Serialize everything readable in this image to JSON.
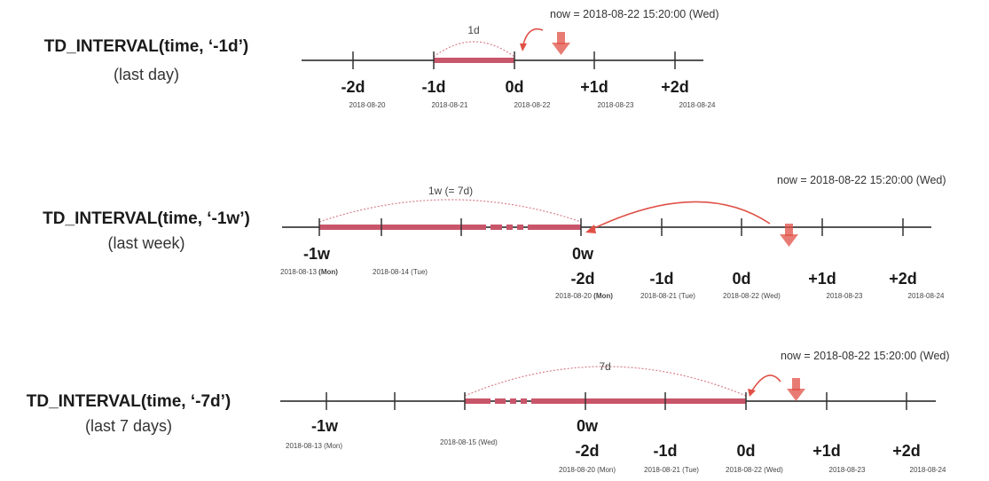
{
  "accent_color": "#c8566a",
  "arrow_color": "#e05045",
  "panels": [
    {
      "function": "TD_INTERVAL(time, ‘-1d’)",
      "caption": "(last day)",
      "now_label": "now = 2018-08-22 15:20:00 (Wed)",
      "span_label": "1d",
      "ticks": [
        {
          "label": "-2d",
          "date": "2018-08-20"
        },
        {
          "label": "-1d",
          "date": "2018-08-21"
        },
        {
          "label": "0d",
          "date": "2018-08-22"
        },
        {
          "label": "+1d",
          "date": "2018-08-23"
        },
        {
          "label": "+2d",
          "date": "2018-08-24"
        }
      ]
    },
    {
      "function": "TD_INTERVAL(time, ‘-1w’)",
      "caption": "(last week)",
      "now_label": "now = 2018-08-22 15:20:00 (Wed)",
      "span_label": "1w (= 7d)",
      "week_ticks": [
        {
          "label": "-1w",
          "date": "2018-08-13",
          "day": "(Mon)"
        },
        {
          "label": "",
          "date": "2018-08-14",
          "day": "(Tue)"
        },
        {
          "label": "0w",
          "date": "",
          "day": ""
        }
      ],
      "day_ticks": [
        {
          "label": "-2d",
          "date": "2018-08-20",
          "day": "(Mon)"
        },
        {
          "label": "-1d",
          "date": "2018-08-21",
          "day": "(Tue)"
        },
        {
          "label": "0d",
          "date": "2018-08-22",
          "day": "(Wed)"
        },
        {
          "label": "+1d",
          "date": "2018-08-23",
          "day": ""
        },
        {
          "label": "+2d",
          "date": "2018-08-24",
          "day": ""
        }
      ]
    },
    {
      "function": "TD_INTERVAL(time, ‘-7d’)",
      "caption": "(last 7 days)",
      "now_label": "now = 2018-08-22 15:20:00 (Wed)",
      "span_label": "7d",
      "week_ticks": [
        {
          "label": "-1w",
          "date": "2018-08-13",
          "day": "(Mon)"
        },
        {
          "label": "",
          "date": "2018-08-15",
          "day": "(Wed)"
        },
        {
          "label": "0w",
          "date": "",
          "day": ""
        }
      ],
      "day_ticks": [
        {
          "label": "-2d",
          "date": "2018-08-20",
          "day": "(Mon)"
        },
        {
          "label": "-1d",
          "date": "2018-08-21",
          "day": "(Tue)"
        },
        {
          "label": "0d",
          "date": "2018-08-22",
          "day": "(Wed)"
        },
        {
          "label": "+1d",
          "date": "2018-08-23",
          "day": ""
        },
        {
          "label": "+2d",
          "date": "2018-08-24",
          "day": ""
        }
      ]
    }
  ]
}
